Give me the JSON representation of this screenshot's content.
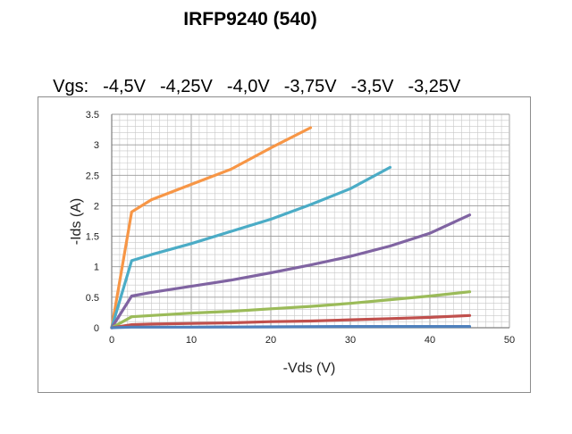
{
  "title": "IRFP9240  (540)",
  "vgs": {
    "prefix": "Vgs:",
    "values": [
      "-4,5V",
      "-4,25V",
      "-4,0V",
      "-3,75V",
      "-3,5V",
      "-3,25V"
    ]
  },
  "chart_data": {
    "type": "line",
    "xlabel": "-Vds (V)",
    "ylabel": "-Ids (A)",
    "xlim": [
      0,
      50
    ],
    "ylim": [
      0,
      3.5
    ],
    "x_ticks": [
      0,
      10,
      20,
      30,
      40,
      50
    ],
    "y_ticks": [
      "0",
      "0.5",
      "1",
      "1.5",
      "2",
      "2.5",
      "3",
      "3.5"
    ],
    "y_tick_values": [
      0,
      0.5,
      1,
      1.5,
      2,
      2.5,
      3,
      3.5
    ],
    "grid": true,
    "series": [
      {
        "color": "#f79646",
        "points": [
          [
            0,
            0
          ],
          [
            2.5,
            1.9
          ],
          [
            5,
            2.1
          ],
          [
            10,
            2.35
          ],
          [
            15,
            2.6
          ],
          [
            20,
            2.95
          ],
          [
            25,
            3.28
          ]
        ]
      },
      {
        "color": "#4bacc6",
        "points": [
          [
            0,
            0
          ],
          [
            2.5,
            1.1
          ],
          [
            5,
            1.2
          ],
          [
            10,
            1.38
          ],
          [
            15,
            1.58
          ],
          [
            20,
            1.78
          ],
          [
            25,
            2.02
          ],
          [
            30,
            2.28
          ],
          [
            35,
            2.63
          ]
        ]
      },
      {
        "color": "#8064a2",
        "points": [
          [
            0,
            0
          ],
          [
            2.5,
            0.52
          ],
          [
            5,
            0.58
          ],
          [
            10,
            0.68
          ],
          [
            15,
            0.78
          ],
          [
            20,
            0.9
          ],
          [
            25,
            1.03
          ],
          [
            30,
            1.17
          ],
          [
            35,
            1.34
          ],
          [
            40,
            1.55
          ],
          [
            45,
            1.85
          ]
        ]
      },
      {
        "color": "#9bbb59",
        "points": [
          [
            0,
            0
          ],
          [
            2.5,
            0.18
          ],
          [
            5,
            0.2
          ],
          [
            10,
            0.24
          ],
          [
            15,
            0.27
          ],
          [
            20,
            0.31
          ],
          [
            25,
            0.35
          ],
          [
            30,
            0.4
          ],
          [
            35,
            0.46
          ],
          [
            40,
            0.52
          ],
          [
            45,
            0.59
          ]
        ]
      },
      {
        "color": "#c0504d",
        "points": [
          [
            0,
            0
          ],
          [
            2.5,
            0.05
          ],
          [
            5,
            0.06
          ],
          [
            10,
            0.07
          ],
          [
            15,
            0.08
          ],
          [
            20,
            0.1
          ],
          [
            25,
            0.11
          ],
          [
            30,
            0.13
          ],
          [
            35,
            0.15
          ],
          [
            40,
            0.17
          ],
          [
            45,
            0.2
          ]
        ]
      },
      {
        "color": "#4f81bd",
        "points": [
          [
            0,
            0
          ],
          [
            2.5,
            0.01
          ],
          [
            10,
            0.01
          ],
          [
            20,
            0.015
          ],
          [
            30,
            0.02
          ],
          [
            45,
            0.02
          ]
        ]
      }
    ]
  }
}
